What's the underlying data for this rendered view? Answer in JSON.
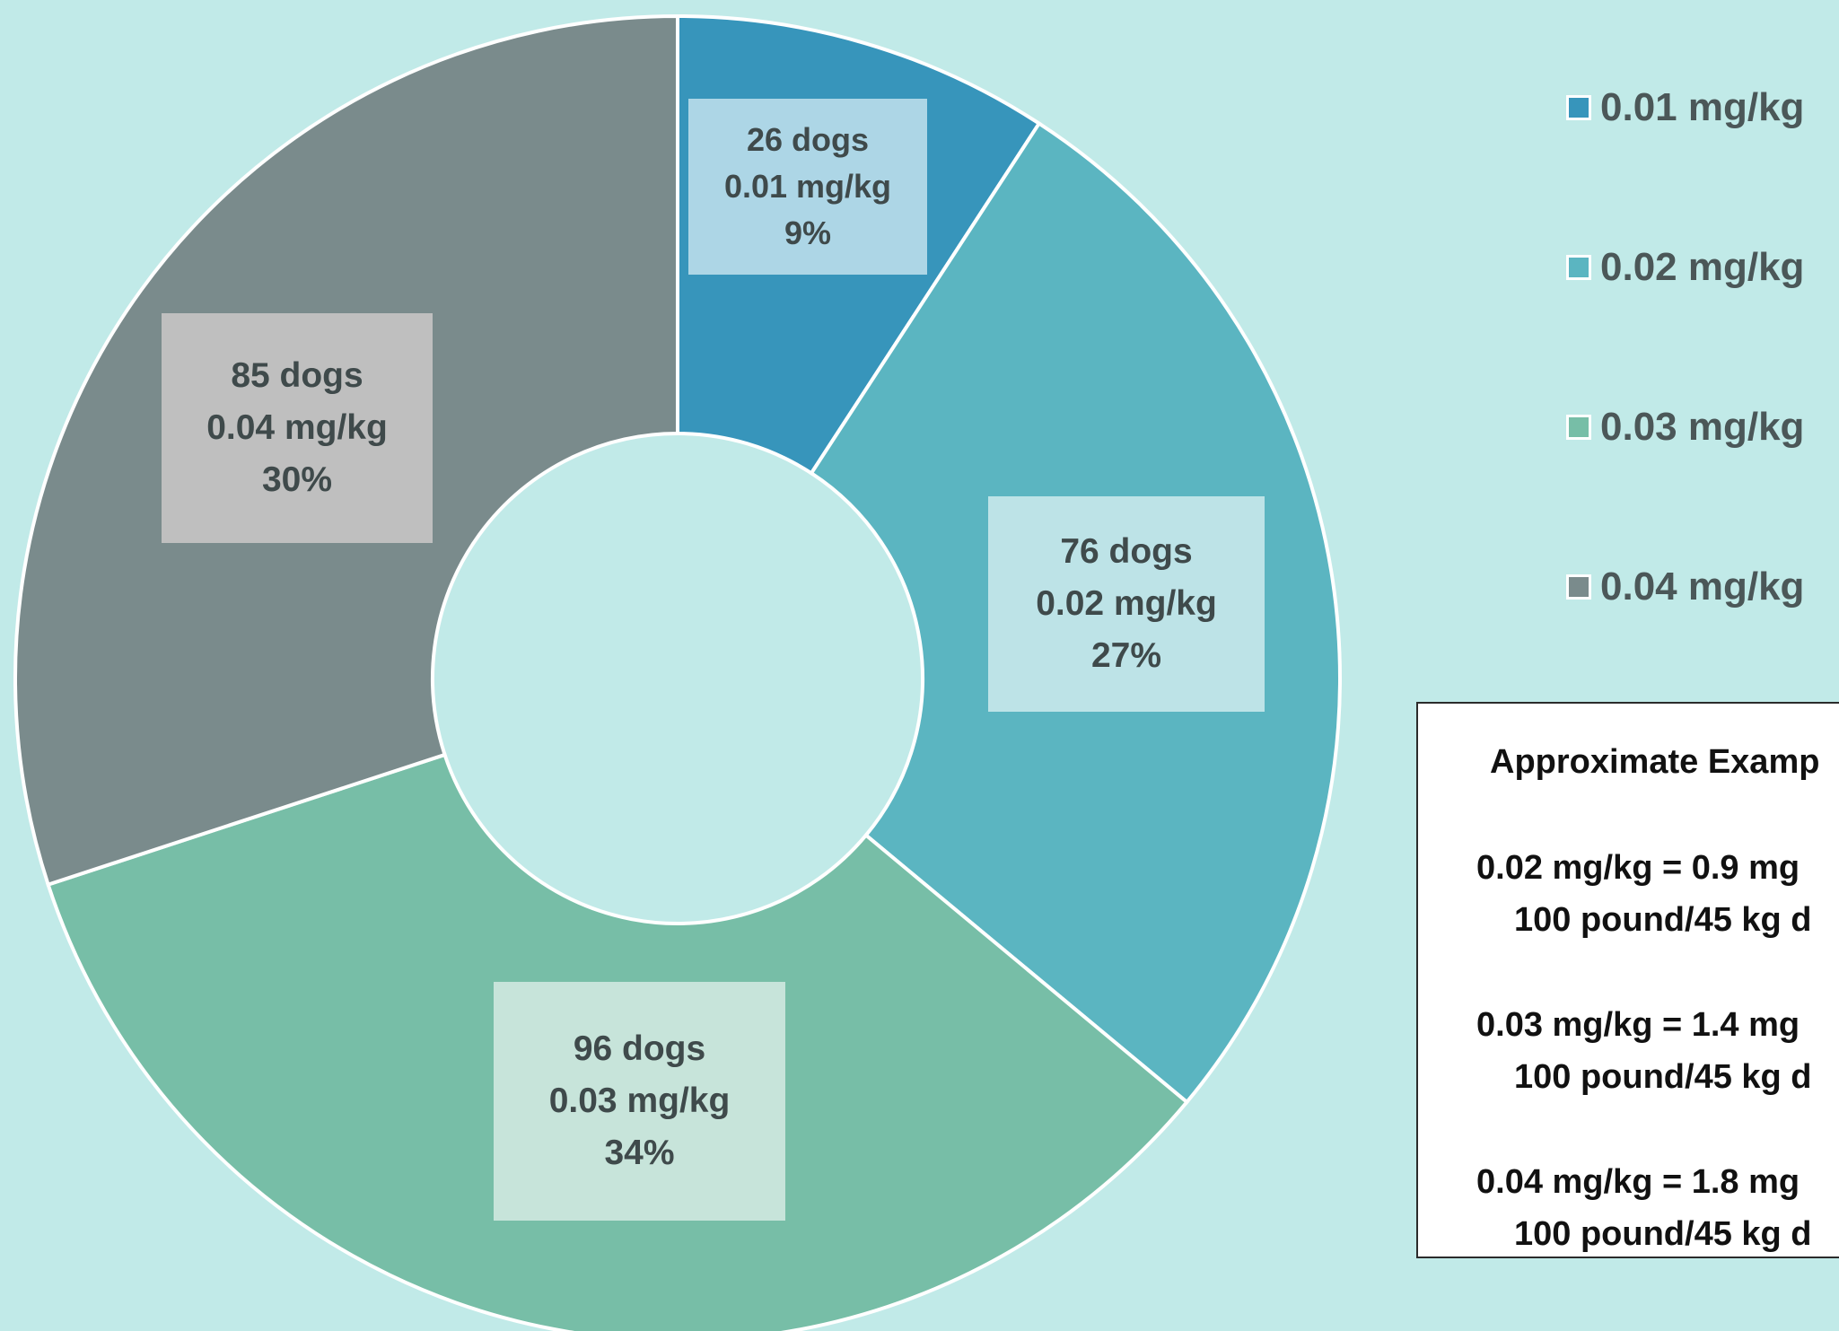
{
  "chart_data": {
    "type": "pie",
    "donut": true,
    "categories": [
      "0.01 mg/kg",
      "0.02 mg/kg",
      "0.03 mg/kg",
      "0.04 mg/kg"
    ],
    "values": [
      26,
      76,
      96,
      85
    ],
    "percent_labels": [
      "9%",
      "27%",
      "34%",
      "30%"
    ],
    "count_labels": [
      "26 dogs",
      "76 dogs",
      "96 dogs",
      "85 dogs"
    ],
    "colors": [
      "#3795bb",
      "#5bb5c1",
      "#77bea7",
      "#7a8b8c"
    ],
    "label_box_colors": [
      "#add6e6",
      "#bde3e7",
      "#c7e4da",
      "#bfbfbf"
    ],
    "legend_placement": "right"
  },
  "legend": {
    "items": [
      "0.01 mg/kg",
      "0.02 mg/kg",
      "0.03 mg/kg",
      "0.04 mg/kg"
    ]
  },
  "examples": {
    "title": "Approximate Examp",
    "lines": [
      [
        "0.02 mg/kg = 0.9 mg",
        "100 pound/45 kg d"
      ],
      [
        "0.03 mg/kg = 1.4 mg",
        "100 pound/45 kg d"
      ],
      [
        "0.04 mg/kg = 1.8 mg",
        "100 pound/45 kg d"
      ]
    ]
  }
}
